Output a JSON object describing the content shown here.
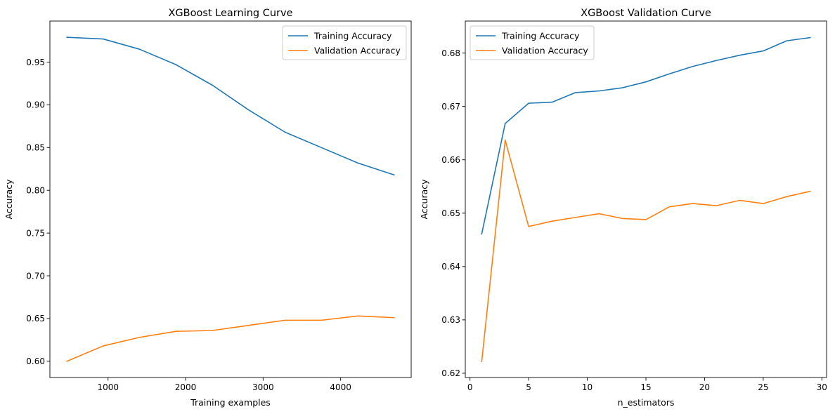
{
  "chart_data": [
    {
      "type": "line",
      "title": "XGBoost Learning Curve",
      "xlabel": "Training examples",
      "ylabel": "Accuracy",
      "x": [
        469,
        938,
        1407,
        1876,
        2345,
        2814,
        3283,
        3752,
        4221,
        4690
      ],
      "series": [
        {
          "name": "Training Accuracy",
          "color": "#1f77b4",
          "values": [
            0.979,
            0.977,
            0.965,
            0.947,
            0.923,
            0.894,
            0.868,
            0.85,
            0.832,
            0.818
          ]
        },
        {
          "name": "Validation Accuracy",
          "color": "#ff7f0e",
          "values": [
            0.6,
            0.618,
            0.628,
            0.635,
            0.636,
            0.642,
            0.648,
            0.648,
            0.653,
            0.651
          ]
        }
      ],
      "xlim": [
        250,
        4910
      ],
      "ylim": [
        0.581,
        0.998
      ],
      "xticks": [
        1000,
        2000,
        3000,
        4000
      ],
      "xtick_labels": [
        "1000",
        "2000",
        "3000",
        "4000"
      ],
      "yticks": [
        0.6,
        0.65,
        0.7,
        0.75,
        0.8,
        0.85,
        0.9,
        0.95
      ],
      "ytick_labels": [
        "0.60",
        "0.65",
        "0.70",
        "0.75",
        "0.80",
        "0.85",
        "0.90",
        "0.95"
      ],
      "legend": "top-right",
      "grid": false
    },
    {
      "type": "line",
      "title": "XGBoost Validation Curve",
      "xlabel": "n_estimators",
      "ylabel": "Accuracy",
      "x": [
        1,
        3,
        5,
        7,
        9,
        11,
        13,
        15,
        17,
        19,
        21,
        23,
        25,
        27,
        29
      ],
      "series": [
        {
          "name": "Training Accuracy",
          "color": "#1f77b4",
          "values": [
            0.6461,
            0.6668,
            0.6706,
            0.6708,
            0.6726,
            0.6729,
            0.6735,
            0.6746,
            0.6761,
            0.6775,
            0.6786,
            0.6796,
            0.6804,
            0.6823,
            0.6829
          ]
        },
        {
          "name": "Validation Accuracy",
          "color": "#ff7f0e",
          "values": [
            0.6222,
            0.6637,
            0.6475,
            0.6485,
            0.6492,
            0.6499,
            0.649,
            0.6488,
            0.6512,
            0.6518,
            0.6514,
            0.6524,
            0.6518,
            0.6531,
            0.6541
          ]
        }
      ],
      "xlim": [
        -0.4,
        30.4
      ],
      "ylim": [
        0.6192,
        0.686
      ],
      "xticks": [
        0,
        5,
        10,
        15,
        20,
        25,
        30
      ],
      "xtick_labels": [
        "0",
        "5",
        "10",
        "15",
        "20",
        "25",
        "30"
      ],
      "yticks": [
        0.62,
        0.63,
        0.64,
        0.65,
        0.66,
        0.67,
        0.68
      ],
      "ytick_labels": [
        "0.62",
        "0.63",
        "0.64",
        "0.65",
        "0.66",
        "0.67",
        "0.68"
      ],
      "legend": "top-left",
      "grid": false
    }
  ]
}
